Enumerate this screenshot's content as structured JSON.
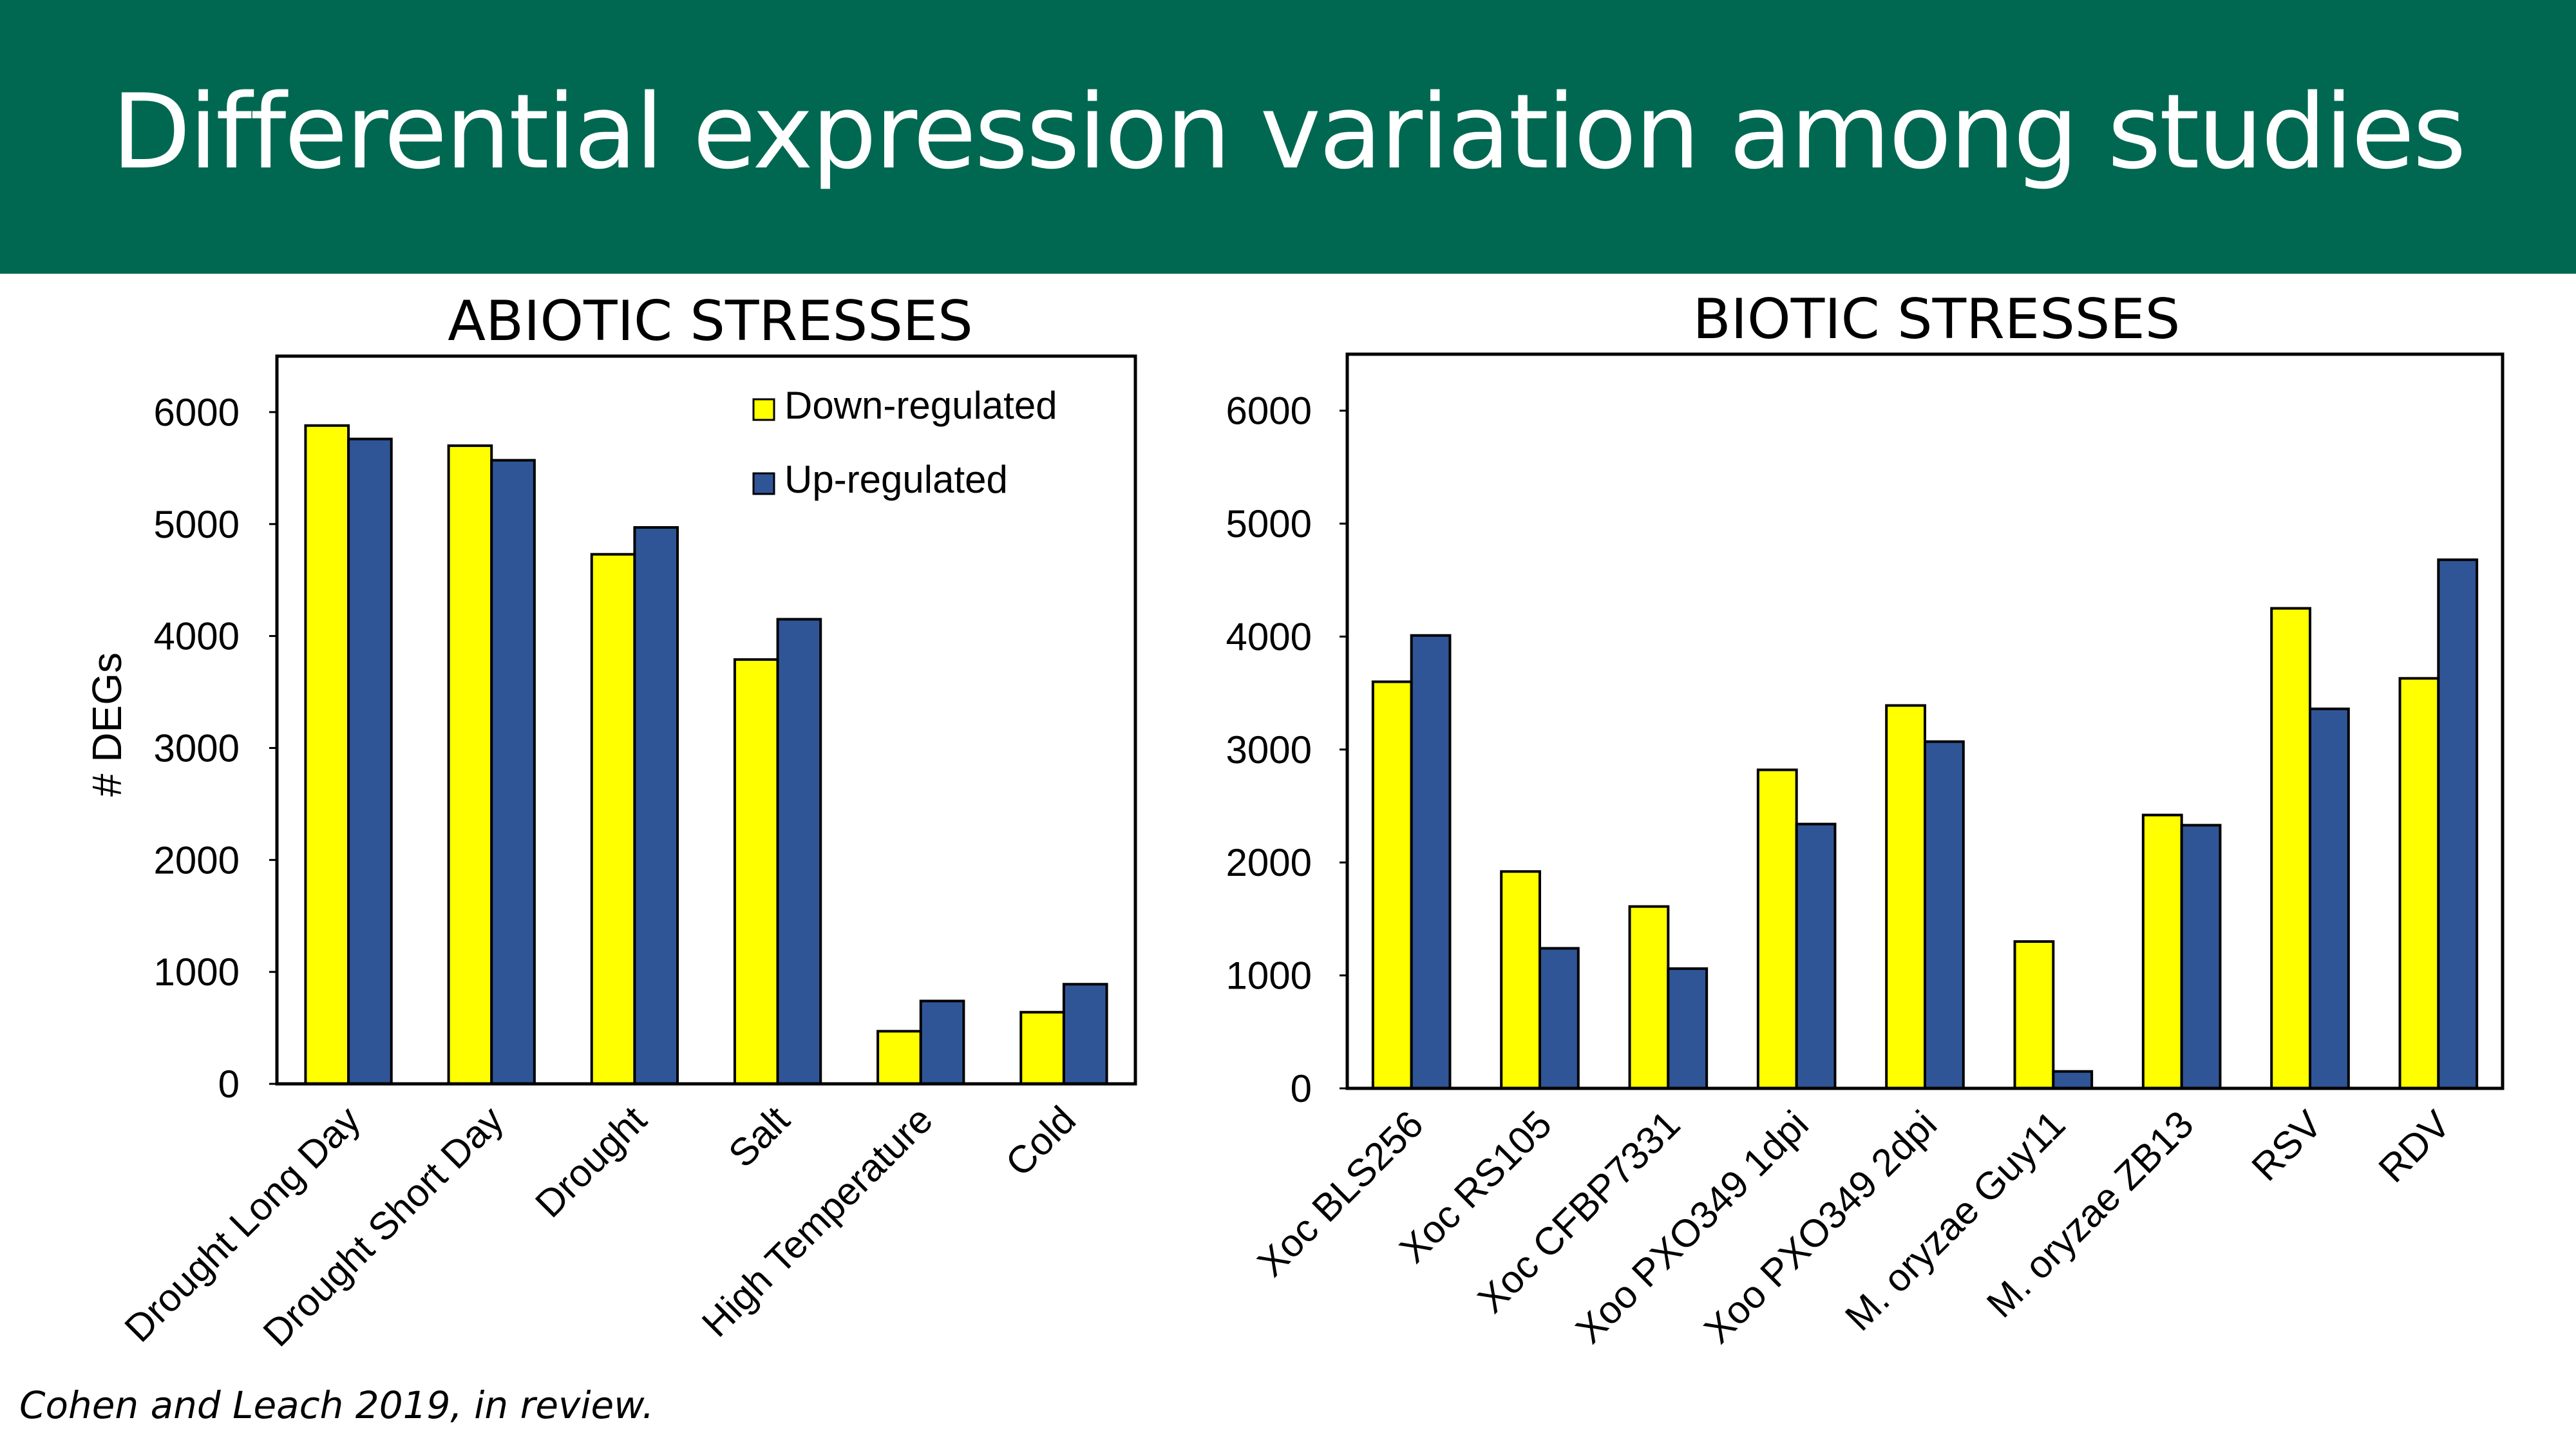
{
  "slide": {
    "title": "Differential expression variation among studies",
    "citation": "Cohen and Leach 2019, in review."
  },
  "colors": {
    "banner": "#006851",
    "down": "#FFFF00",
    "up": "#2F5597"
  },
  "chart_data": [
    {
      "type": "bar",
      "title": "ABIOTIC STRESSES",
      "ylabel": "# DEGs",
      "ylim": [
        0,
        6500
      ],
      "yticks": [
        0,
        1000,
        2000,
        3000,
        4000,
        5000,
        6000
      ],
      "legend_position": "top-right",
      "categories": [
        "Drought Long Day",
        "Drought Short Day",
        "Drought",
        "Salt",
        "High Temperature",
        "Cold"
      ],
      "series": [
        {
          "name": "Down-regulated",
          "values": [
            5880,
            5700,
            4730,
            3790,
            470,
            640
          ]
        },
        {
          "name": "Up-regulated",
          "values": [
            5760,
            5570,
            4970,
            4150,
            740,
            890
          ]
        }
      ]
    },
    {
      "type": "bar",
      "title": "BIOTIC STRESSES",
      "ylabel": "",
      "ylim": [
        0,
        6500
      ],
      "yticks": [
        0,
        1000,
        2000,
        3000,
        4000,
        5000,
        6000
      ],
      "legend_position": "none",
      "categories": [
        "Xoc BLS256",
        "Xoc RS105",
        "Xoc CFBP7331",
        "Xoo PXO349 1dpi",
        "Xoo PXO349 2dpi",
        "M. oryzae Guy11",
        "M. oryzae ZB13",
        "RSV",
        "RDV"
      ],
      "series": [
        {
          "name": "Down-regulated",
          "values": [
            3600,
            1920,
            1610,
            2820,
            3390,
            1300,
            2420,
            4250,
            3630
          ]
        },
        {
          "name": "Up-regulated",
          "values": [
            4010,
            1240,
            1060,
            2340,
            3070,
            150,
            2330,
            3360,
            4680
          ]
        }
      ]
    }
  ]
}
